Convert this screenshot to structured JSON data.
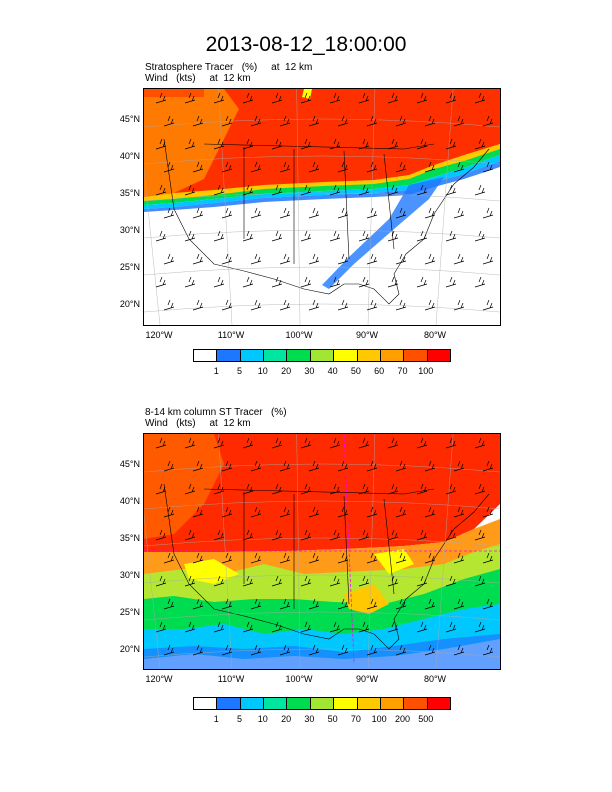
{
  "title": "2013-08-12_18:00:00",
  "panel1": {
    "line1": "Stratosphere Tracer   (%)     at  12 km",
    "line2": "Wind   (kts)     at  12 km",
    "lat_labels": [
      "45°N",
      "40°N",
      "35°N",
      "30°N",
      "25°N",
      "20°N"
    ],
    "lon_labels": [
      "120°W",
      "110°W",
      "100°W",
      "90°W",
      "80°W"
    ],
    "colorbar": {
      "colors": [
        "#ffffff",
        "#1e78ff",
        "#00c8ff",
        "#00e6a0",
        "#00dc50",
        "#a0e632",
        "#ffff00",
        "#ffc800",
        "#ffa000",
        "#ff5000",
        "#ff0000"
      ],
      "labels": [
        "1",
        "5",
        "10",
        "20",
        "30",
        "40",
        "50",
        "60",
        "70",
        "100"
      ]
    }
  },
  "panel2": {
    "line1": "8-14 km column ST Tracer   (%)",
    "line2": "Wind   (kts)     at  12 km",
    "lat_labels": [
      "45°N",
      "40°N",
      "35°N",
      "30°N",
      "25°N",
      "20°N"
    ],
    "lon_labels": [
      "120°W",
      "110°W",
      "100°W",
      "90°W",
      "80°W"
    ],
    "colorbar": {
      "colors": [
        "#ffffff",
        "#1e78ff",
        "#00c8ff",
        "#00e6a0",
        "#00dc50",
        "#a0e632",
        "#ffff00",
        "#ffc800",
        "#ffa000",
        "#ff5000",
        "#ff0000"
      ],
      "labels": [
        "1",
        "5",
        "10",
        "20",
        "30",
        "50",
        "70",
        "100",
        "200",
        "500"
      ]
    }
  }
}
